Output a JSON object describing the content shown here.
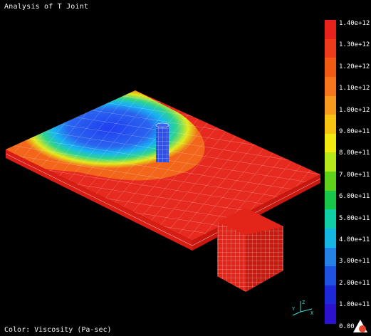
{
  "title": "Analysis of T Joint",
  "footer": "Color: Viscosity (Pa-sec)",
  "legend": {
    "ticks": [
      "1.40e+12",
      "1.30e+12",
      "1.20e+12",
      "1.10e+12",
      "1.00e+12",
      "9.00e+11",
      "8.00e+11",
      "7.00e+11",
      "6.00e+11",
      "5.00e+11",
      "4.00e+11",
      "3.00e+11",
      "2.00e+11",
      "1.00e+11",
      "0.00"
    ],
    "colors": [
      "#e8231d",
      "#ef3a1c",
      "#f25a14",
      "#f5761d",
      "#f79a1d",
      "#f6c411",
      "#f3ea0f",
      "#b6e91a",
      "#5fd11d",
      "#18c64a",
      "#10cfa6",
      "#16b6e3",
      "#2581e6",
      "#1f52e0",
      "#1b29d8",
      "#2b12cf"
    ]
  },
  "axes_label": "xyz axis triad",
  "icons": {
    "axes": "axis-triad-icon",
    "corner": "app-logo-icon"
  }
}
